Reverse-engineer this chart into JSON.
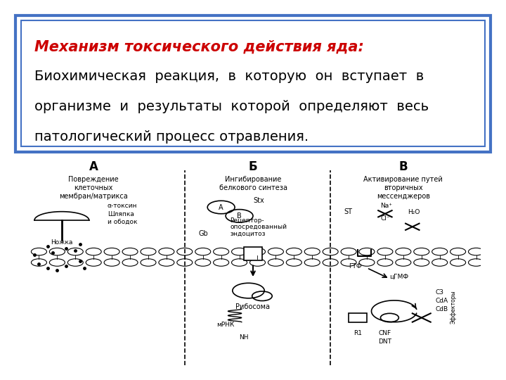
{
  "title_bold_italic": "Механизм токсического действия яда:",
  "title_color": "#cc0000",
  "body_text_line1": "Биохимическая  реакция,  в  которую  он  вступает  в",
  "body_text_line2": "организме  и  результаты  которой  определяют  весь",
  "body_text_line3": "патологический процесс отравления.",
  "text_color": "#000000",
  "box_border_outer": "#4472c4",
  "box_border_inner": "#4472c4",
  "background_color": "#ffffff",
  "box_facecolor": "#ffffff",
  "title_fontsize": 15,
  "body_fontsize": 14,
  "fig_width": 7.2,
  "fig_height": 5.4,
  "dpi": 100
}
